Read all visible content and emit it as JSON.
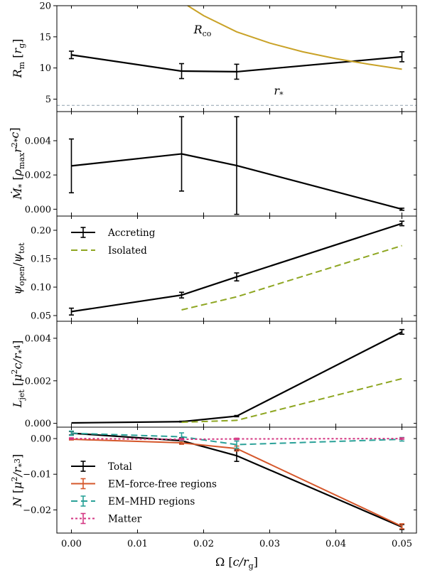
{
  "chart_data": [
    {
      "type": "line",
      "ylabel": "R_m [r_g]",
      "ylim": [
        3,
        20
      ],
      "yticks": [
        5,
        10,
        15,
        20
      ],
      "series": [
        {
          "x": [
            0,
            0.01667,
            0.025,
            0.05
          ],
          "values": [
            12.1,
            9.5,
            9.4,
            11.8
          ],
          "err": [
            0.6,
            1.2,
            1.2,
            0.8
          ],
          "color": "#000000",
          "style": "solid",
          "errorbars": true
        },
        {
          "name": "R_co",
          "x": [
            0.0176,
            0.02,
            0.025,
            0.03,
            0.035,
            0.04,
            0.045,
            0.05
          ],
          "values": [
            20,
            18.4,
            15.8,
            14,
            12.6,
            11.5,
            10.6,
            9.8
          ],
          "color": "#c9a227",
          "style": "solid",
          "errorbars": false
        }
      ],
      "hlines": [
        {
          "name": "r_*",
          "y": 4,
          "color": "#8fa0ad",
          "style": "dashed"
        }
      ],
      "annotations": [
        "R_co",
        "r_*"
      ]
    },
    {
      "type": "line",
      "ylabel": "Ṁ_* [ρ_max r_*^2 c]",
      "ylim": [
        -0.0004,
        0.0057
      ],
      "yticks": [
        0.0,
        0.002,
        0.004
      ],
      "series": [
        {
          "x": [
            0,
            0.01667,
            0.025,
            0.05
          ],
          "values": [
            0.00253,
            0.00323,
            0.00255,
            0.0
          ],
          "err": [
            0.00157,
            0.00217,
            0.00285,
            6e-05
          ],
          "color": "#000000",
          "style": "solid",
          "errorbars": true
        }
      ]
    },
    {
      "type": "line",
      "ylabel": "ψ_open/ψ_tot",
      "ylim": [
        0.04,
        0.225
      ],
      "yticks": [
        0.05,
        0.1,
        0.15,
        0.2
      ],
      "series": [
        {
          "name": "Accreting",
          "x": [
            0,
            0.01667,
            0.025,
            0.05
          ],
          "values": [
            0.057,
            0.086,
            0.118,
            0.212
          ],
          "err": [
            0.006,
            0.005,
            0.007,
            0.004
          ],
          "color": "#000000",
          "style": "solid",
          "errorbars": true
        },
        {
          "name": "Isolated",
          "x": [
            0.01667,
            0.025,
            0.05
          ],
          "values": [
            0.06,
            0.083,
            0.173
          ],
          "err": [
            0,
            0,
            0
          ],
          "color": "#8ea621",
          "style": "dashed",
          "errorbars": false
        }
      ],
      "legend": {
        "placement": "upper-left",
        "entries": [
          "Accreting",
          "Isolated"
        ]
      }
    },
    {
      "type": "line",
      "ylabel": "L_jet [μ^2 c/r_*^4]",
      "ylim": [
        -0.00018,
        0.0048
      ],
      "yticks": [
        0.0,
        0.002,
        0.004
      ],
      "series": [
        {
          "x": [
            0,
            0.01667,
            0.025,
            0.05
          ],
          "values": [
            2e-05,
            8e-05,
            0.00034,
            0.0043
          ],
          "err": [
            0,
            2e-05,
            3e-05,
            0.00011
          ],
          "color": "#000000",
          "style": "solid",
          "errorbars": true
        },
        {
          "x": [
            0.01667,
            0.025,
            0.05
          ],
          "values": [
            5e-05,
            0.00014,
            0.0021
          ],
          "err": [
            0,
            0,
            0
          ],
          "color": "#8ea621",
          "style": "dashed",
          "errorbars": false
        }
      ]
    },
    {
      "type": "line",
      "ylabel": "N [μ^2/r_*^3]",
      "xlabel": "Ω [c/r_g]",
      "xlim": [
        -0.0022,
        0.0522
      ],
      "xticks": [
        0.0,
        0.01,
        0.02,
        0.03,
        0.04,
        0.05
      ],
      "ylim": [
        -0.0265,
        0.0032
      ],
      "yticks": [
        -0.02,
        -0.01,
        0.0
      ],
      "series": [
        {
          "name": "Total",
          "x": [
            0,
            0.01667,
            0.025,
            0.05
          ],
          "values": [
            0.0015,
            -0.0006,
            -0.0048,
            -0.0248
          ],
          "err": [
            0.0005,
            0.0008,
            0.0016,
            0.0007
          ],
          "color": "#000000",
          "style": "solid",
          "errorbars": true
        },
        {
          "name": "EM–force-free regions",
          "x": [
            0,
            0.01667,
            0.025,
            0.05
          ],
          "values": [
            -0.0002,
            -0.0012,
            -0.0028,
            -0.0246
          ],
          "err": [
            0.0002,
            0.0004,
            0.0007,
            0.0007
          ],
          "color": "#d5572b",
          "style": "solid",
          "errorbars": true
        },
        {
          "name": "EM–MHD regions",
          "x": [
            0,
            0.01667,
            0.025,
            0.05
          ],
          "values": [
            0.0015,
            0.0005,
            -0.0017,
            -0.0002
          ],
          "err": [
            0.0006,
            0.0011,
            0.001,
            0.0005
          ],
          "color": "#2aa198",
          "style": "dashed",
          "errorbars": true
        },
        {
          "name": "Matter",
          "x": [
            0,
            0.01667,
            0.025,
            0.05
          ],
          "values": [
            0.0,
            -0.0002,
            -0.0001,
            0.0
          ],
          "err": [
            0.0002,
            0.0002,
            0.0002,
            0.0002
          ],
          "color": "#d33682",
          "style": "dotted",
          "errorbars": true
        }
      ],
      "legend": {
        "placement": "lower-left",
        "entries": [
          "Total",
          "EM–force-free regions",
          "EM–MHD regions",
          "Matter"
        ]
      }
    }
  ],
  "xticklabels": [
    "0.00",
    "0.01",
    "0.02",
    "0.03",
    "0.04",
    "0.05"
  ]
}
